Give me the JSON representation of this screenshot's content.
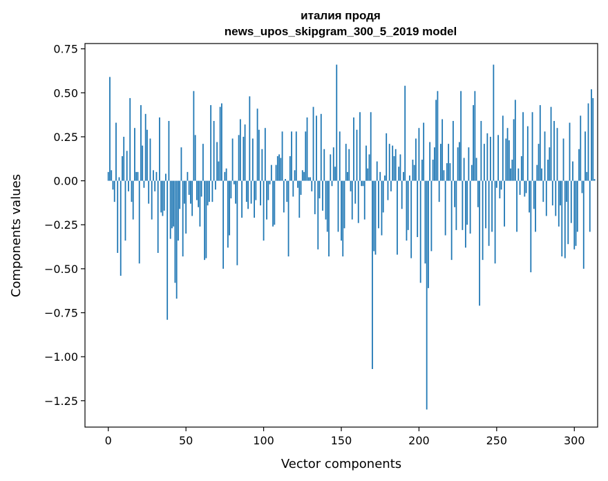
{
  "chart_data": {
    "type": "bar",
    "title": [
      "италия продя",
      "news_upos_skipgram_300_5_2019 model"
    ],
    "xlabel": "Vector components",
    "ylabel": "Components values",
    "xlim": [
      -15,
      315
    ],
    "ylim": [
      -1.4,
      0.78
    ],
    "xticks": [
      0,
      50,
      100,
      150,
      200,
      250,
      300
    ],
    "yticks": [
      0.75,
      0.5,
      0.25,
      0.0,
      -0.25,
      -0.5,
      -0.75,
      -1.0,
      -1.25
    ],
    "ytick_labels": [
      "0.75",
      "0.50",
      "0.25",
      "0.00",
      "−0.25",
      "−0.50",
      "−0.75",
      "−1.00",
      "−1.25"
    ],
    "grid": false,
    "bar_color": "#1f77b4",
    "values": [
      0.05,
      0.59,
      0.06,
      -0.05,
      -0.12,
      0.33,
      -0.41,
      0.02,
      -0.54,
      0.14,
      0.25,
      -0.34,
      0.17,
      -0.06,
      0.47,
      -0.12,
      -0.22,
      0.3,
      0.05,
      0.05,
      -0.47,
      0.43,
      0.2,
      -0.04,
      0.38,
      0.29,
      -0.13,
      0.24,
      -0.22,
      0.06,
      -0.06,
      0.05,
      -0.41,
      0.36,
      -0.18,
      -0.2,
      -0.17,
      0.04,
      -0.79,
      0.34,
      -0.33,
      -0.27,
      -0.26,
      -0.58,
      -0.67,
      -0.34,
      -0.16,
      0.19,
      -0.43,
      -0.13,
      -0.3,
      0.05,
      -0.08,
      -0.13,
      -0.2,
      0.51,
      0.26,
      -0.11,
      -0.15,
      -0.26,
      -0.09,
      0.21,
      -0.45,
      -0.44,
      -0.14,
      -0.12,
      0.43,
      -0.12,
      0.34,
      -0.05,
      0.22,
      0.11,
      0.42,
      0.44,
      -0.5,
      0.05,
      0.07,
      -0.38,
      -0.31,
      -0.1,
      0.24,
      -0.02,
      -0.13,
      -0.48,
      0.26,
      0.35,
      -0.21,
      0.25,
      0.32,
      -0.12,
      -0.16,
      0.48,
      -0.13,
      0.24,
      -0.21,
      -0.11,
      0.41,
      0.29,
      -0.14,
      0.18,
      -0.34,
      0.3,
      -0.22,
      -0.11,
      -0.02,
      0.09,
      -0.26,
      -0.25,
      0.09,
      0.14,
      0.15,
      0.13,
      0.28,
      -0.18,
      0.01,
      -0.12,
      -0.43,
      0.14,
      0.28,
      -0.09,
      0.06,
      0.28,
      -0.04,
      -0.21,
      -0.08,
      0.06,
      0.05,
      0.28,
      0.36,
      0.02,
      0.02,
      -0.06,
      0.42,
      -0.19,
      0.37,
      -0.39,
      -0.1,
      0.38,
      -0.17,
      0.18,
      -0.22,
      -0.29,
      -0.43,
      0.15,
      -0.03,
      0.19,
      0.08,
      0.66,
      -0.29,
      0.28,
      -0.34,
      -0.43,
      -0.27,
      0.21,
      0.05,
      0.18,
      -0.06,
      -0.22,
      0.36,
      -0.13,
      0.29,
      -0.24,
      0.39,
      -0.03,
      -0.03,
      -0.22,
      0.2,
      0.07,
      0.15,
      0.39,
      -1.07,
      -0.4,
      -0.42,
      0.11,
      -0.27,
      0.05,
      -0.31,
      -0.18,
      0.03,
      0.27,
      -0.11,
      0.21,
      -0.06,
      0.2,
      0.14,
      0.18,
      -0.42,
      0.08,
      0.15,
      -0.16,
      0.05,
      0.54,
      -0.34,
      -0.28,
      0.03,
      -0.44,
      0.12,
      0.09,
      0.24,
      -0.32,
      0.3,
      -0.58,
      0.12,
      0.33,
      -0.47,
      -1.3,
      -0.61,
      0.22,
      -0.4,
      0.12,
      0.19,
      0.46,
      0.51,
      -0.12,
      0.21,
      0.35,
      0.06,
      -0.31,
      0.1,
      0.21,
      0.1,
      -0.45,
      0.34,
      -0.15,
      -0.28,
      0.19,
      0.22,
      0.51,
      -0.28,
      0.13,
      -0.38,
      -0.25,
      0.19,
      -0.3,
      0.09,
      0.43,
      0.51,
      0.13,
      -0.15,
      -0.71,
      0.34,
      -0.45,
      0.21,
      -0.27,
      0.27,
      -0.37,
      0.25,
      -0.29,
      0.66,
      -0.47,
      -0.04,
      0.26,
      -0.1,
      -0.05,
      0.37,
      -0.26,
      0.24,
      0.3,
      0.23,
      0.07,
      0.12,
      0.35,
      0.46,
      -0.29,
      0.07,
      -0.08,
      0.14,
      0.39,
      -0.09,
      -0.07,
      0.31,
      -0.18,
      -0.52,
      0.39,
      -0.16,
      -0.29,
      0.09,
      0.21,
      0.43,
      0.07,
      -0.12,
      0.28,
      -0.2,
      0.12,
      0.19,
      0.42,
      -0.14,
      0.34,
      -0.2,
      0.3,
      -0.26,
      -0.14,
      -0.43,
      0.24,
      -0.44,
      -0.12,
      -0.36,
      0.33,
      -0.24,
      0.11,
      -0.39,
      -0.37,
      -0.29,
      0.18,
      0.37,
      -0.07,
      -0.5,
      0.28,
      0.05,
      0.44,
      -0.29,
      0.52,
      0.47,
      0.01
    ]
  }
}
